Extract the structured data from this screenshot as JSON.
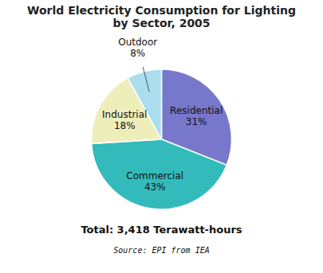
{
  "chart_data": {
    "type": "pie",
    "title": "World Electricity Consumption for Lighting\nby Sector, 2005",
    "categories": [
      "Residential",
      "Commercial",
      "Industrial",
      "Outdoor"
    ],
    "values": [
      31,
      43,
      18,
      8
    ],
    "value_labels": [
      "31%",
      "43%",
      "18%",
      "8%"
    ],
    "colors": [
      "#7777cc",
      "#33bbbb",
      "#eeeebb",
      "#aaddee"
    ],
    "data_labels": true,
    "annotations": [
      "Total: 3,418 Terawatt-hours",
      "Source: EPI from IEA"
    ]
  }
}
